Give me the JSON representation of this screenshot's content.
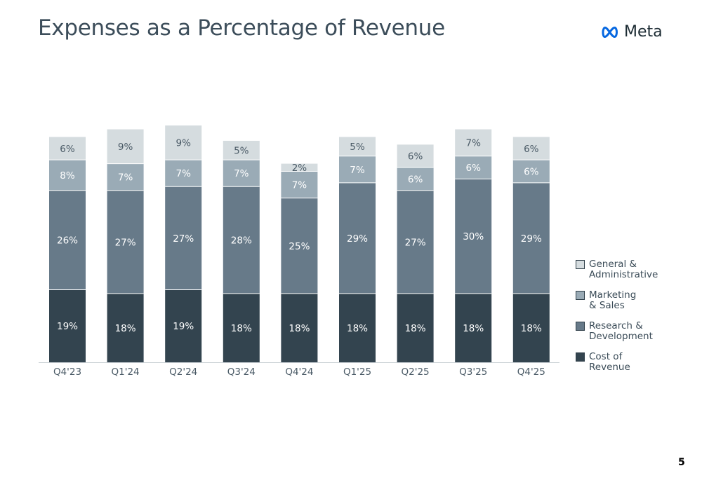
{
  "header": {
    "title": "Expenses as a Percentage of Revenue",
    "logo_text": "Meta",
    "logo_icon": "meta-infinity-logo"
  },
  "page_number": "5",
  "chart_data": {
    "type": "bar",
    "stacked": true,
    "title": "Expenses as a Percentage of Revenue",
    "xlabel": "",
    "ylabel": "",
    "categories": [
      "Q4'23",
      "Q1'24",
      "Q2'24",
      "Q3'24",
      "Q4'24",
      "Q1'25",
      "Q2'25",
      "Q3'25",
      "Q4'25"
    ],
    "series": [
      {
        "name": "Cost of\nRevenue",
        "color": "#33444f",
        "values": [
          19,
          18,
          19,
          18,
          18,
          18,
          18,
          18,
          18
        ],
        "labels": [
          "19%",
          "18%",
          "19%",
          "18%",
          "18%",
          "18%",
          "18%",
          "18%",
          "18%"
        ]
      },
      {
        "name": "Research &\nDevelopment",
        "color": "#677a89",
        "values": [
          26,
          27,
          27,
          28,
          25,
          29,
          27,
          30,
          29
        ],
        "labels": [
          "26%",
          "27%",
          "27%",
          "28%",
          "25%",
          "29%",
          "27%",
          "30%",
          "29%"
        ]
      },
      {
        "name": "Marketing\n& Sales",
        "color": "#9aabb6",
        "values": [
          8,
          7,
          7,
          7,
          7,
          7,
          6,
          6,
          6
        ],
        "labels": [
          "8%",
          "7%",
          "7%",
          "7%",
          "7%",
          "7%",
          "6%",
          "6%",
          "6%"
        ]
      },
      {
        "name": "General &\nAdministrative",
        "color": "#d5dcdf",
        "values": [
          6,
          9,
          9,
          5,
          2,
          5,
          6,
          7,
          6
        ],
        "labels": [
          "6%",
          "9%",
          "9%",
          "5%",
          "2%",
          "5%",
          "6%",
          "7%",
          "6%"
        ]
      }
    ],
    "legend_position": "right",
    "grid": false
  }
}
